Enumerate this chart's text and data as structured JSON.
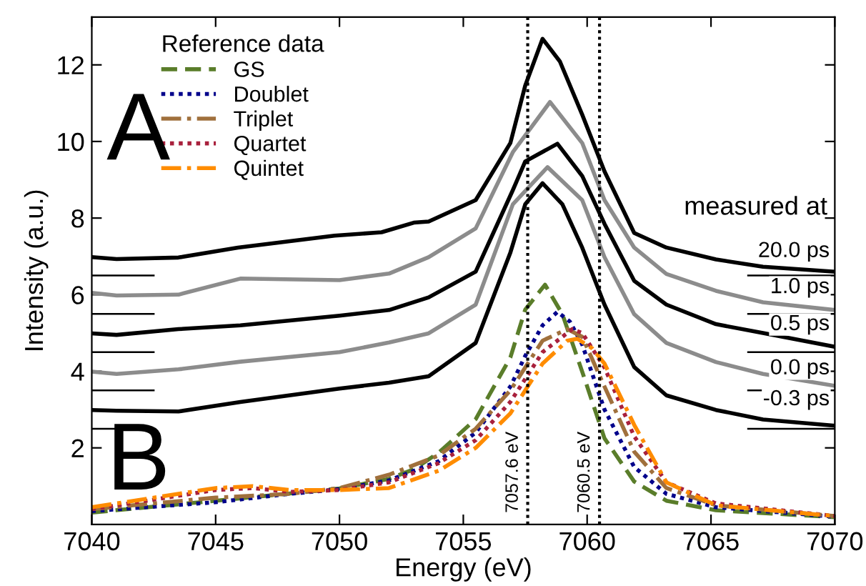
{
  "chart_data": {
    "type": "line",
    "xlabel": "Energy (eV)",
    "ylabel": "Intensity (a.u.)",
    "legend_title": "Reference data",
    "legend": "top left",
    "grid": false,
    "marker": "none",
    "xlim": [
      7040,
      7070
    ],
    "ylim": [
      0,
      13.25
    ],
    "xticks": [
      7040,
      7045,
      7050,
      7055,
      7060,
      7065,
      7070
    ],
    "yticks": [
      2,
      4,
      6,
      8,
      10,
      12
    ],
    "series": [
      {
        "color": "#000000",
        "line_style": "solid",
        "x": [
          7040,
          7041,
          7043.5,
          7045.9,
          7049.8,
          7051.7,
          7053,
          7053.6,
          7055.5,
          7056.9,
          7057.5,
          7058.2,
          7058.9,
          7059.8,
          7060.7,
          7061.9,
          7063.2,
          7065.2,
          7067.1,
          7070
        ],
        "values": [
          6.98,
          6.93,
          6.97,
          7.23,
          7.54,
          7.63,
          7.88,
          7.91,
          8.47,
          9.96,
          11.46,
          12.68,
          12.09,
          10.7,
          9.22,
          7.61,
          7.23,
          6.92,
          6.73,
          6.6
        ]
      },
      {
        "color": "#8c8c8c",
        "line_style": "solid",
        "x": [
          7040,
          7041,
          7043.5,
          7046,
          7050,
          7052,
          7053.6,
          7055.5,
          7057,
          7058.5,
          7059.8,
          7060.7,
          7061.9,
          7063.2,
          7065.2,
          7067.1,
          7070
        ],
        "values": [
          6.05,
          5.98,
          6.0,
          6.42,
          6.38,
          6.55,
          6.98,
          7.73,
          9.72,
          11.03,
          9.96,
          8.47,
          7.23,
          6.54,
          6.1,
          5.8,
          5.6
        ]
      },
      {
        "color": "#000000",
        "line_style": "solid",
        "x": [
          7040,
          7041,
          7043.5,
          7046,
          7050,
          7052,
          7053.6,
          7055.5,
          7057,
          7057.5,
          7058.8,
          7059.8,
          7060.7,
          7061.9,
          7063.2,
          7065.2,
          7067.1,
          7070
        ],
        "values": [
          4.99,
          4.95,
          5.1,
          5.2,
          5.45,
          5.6,
          5.93,
          6.6,
          8.73,
          9.48,
          9.94,
          9.1,
          7.85,
          6.36,
          5.74,
          5.23,
          5.0,
          4.64
        ]
      },
      {
        "color": "#8c8c8c",
        "line_style": "solid",
        "x": [
          7040,
          7041,
          7043.5,
          7046,
          7050,
          7052,
          7053.6,
          7055.5,
          7057,
          7058.4,
          7059.8,
          7060.7,
          7061.9,
          7063.2,
          7065.2,
          7067.1,
          7070
        ],
        "values": [
          3.99,
          3.93,
          4.05,
          4.25,
          4.5,
          4.75,
          4.99,
          5.74,
          8.36,
          9.33,
          8.47,
          6.98,
          5.49,
          4.74,
          4.24,
          3.93,
          3.62
        ]
      },
      {
        "color": "#000000",
        "line_style": "solid",
        "x": [
          7040,
          7041,
          7043.5,
          7046,
          7050,
          7052,
          7053.6,
          7055.5,
          7056.9,
          7057.5,
          7058.2,
          7059,
          7059.8,
          7060.7,
          7061.9,
          7063.2,
          7065.2,
          7067.1,
          7070
        ],
        "values": [
          2.99,
          2.97,
          2.95,
          3.2,
          3.55,
          3.7,
          3.87,
          4.74,
          7.1,
          8.36,
          8.91,
          8.36,
          7.23,
          5.74,
          4.11,
          3.37,
          2.99,
          2.74,
          2.58
        ]
      },
      {
        "name": "GS",
        "color": "#5a7d2a",
        "line_style": "dashed",
        "x": [
          7040,
          7045,
          7048,
          7050,
          7052,
          7053,
          7054,
          7055.5,
          7056.9,
          7057.5,
          7058.3,
          7059,
          7059.8,
          7060.7,
          7061.9,
          7063.2,
          7065.2,
          7070
        ],
        "values": [
          0.31,
          0.62,
          0.81,
          0.94,
          1.19,
          1.44,
          1.87,
          2.75,
          4.36,
          5.61,
          6.26,
          5.49,
          3.99,
          2.25,
          1.12,
          0.62,
          0.37,
          0.19
        ]
      },
      {
        "name": "Doublet",
        "color": "#00008b",
        "line_style": "dotted",
        "x": [
          7040,
          7045,
          7048,
          7050,
          7052,
          7054,
          7055.5,
          7056.9,
          7057.5,
          7058.2,
          7058.8,
          7059.3,
          7059.8,
          7060.7,
          7061.9,
          7063.2,
          7065.2,
          7070
        ],
        "values": [
          0.35,
          0.58,
          0.8,
          0.92,
          1.15,
          1.65,
          2.4,
          3.6,
          4.4,
          5.2,
          5.55,
          5.3,
          4.7,
          3.0,
          1.5,
          0.8,
          0.45,
          0.2
        ]
      },
      {
        "name": "Triplet",
        "color": "#a0703c",
        "line_style": "dashdot",
        "x": [
          7040,
          7045,
          7048,
          7050,
          7052,
          7054,
          7055.5,
          7056.9,
          7057.5,
          7058.2,
          7059.2,
          7059.8,
          7060.7,
          7061.9,
          7063.2,
          7065.2,
          7070
        ],
        "values": [
          0.4,
          0.7,
          0.8,
          0.95,
          1.3,
          1.8,
          2.5,
          3.5,
          4.1,
          4.8,
          5.1,
          4.9,
          3.6,
          1.9,
          0.95,
          0.5,
          0.22
        ]
      },
      {
        "name": "Quartet",
        "color": "#a8203c",
        "line_style": "dotted",
        "x": [
          7040,
          7045,
          7046.5,
          7048,
          7050,
          7052,
          7054,
          7055.5,
          7056.9,
          7057.5,
          7058.2,
          7059.4,
          7059.8,
          7060.7,
          7061.9,
          7063.2,
          7065.2,
          7070
        ],
        "values": [
          0.4,
          0.9,
          0.95,
          0.85,
          0.9,
          1.1,
          1.6,
          2.2,
          3.2,
          3.8,
          4.5,
          5.1,
          5.0,
          4.1,
          2.3,
          1.1,
          0.55,
          0.22
        ]
      },
      {
        "name": "Quintet",
        "color": "#ff8c00",
        "line_style": "dashdot",
        "x": [
          7040,
          7045,
          7046.5,
          7048,
          7050,
          7052,
          7054,
          7055.5,
          7056.9,
          7057.5,
          7058.2,
          7059.2,
          7059.6,
          7060.2,
          7060.7,
          7061.9,
          7063.2,
          7065.2,
          7070
        ],
        "values": [
          0.45,
          0.95,
          1.0,
          0.9,
          0.9,
          0.95,
          1.4,
          2.0,
          2.9,
          3.5,
          4.2,
          4.8,
          4.85,
          4.6,
          4.2,
          2.6,
          1.1,
          0.5,
          0.22
        ]
      },
      {
        "color": "#000000",
        "line_style": "solid",
        "x": [
          7040,
          7042.5,
          7055,
          7066.5,
          7070
        ],
        "values": [
          6.5,
          6.5,
          null,
          6.5,
          6.5
        ]
      },
      {
        "color": "#000000",
        "line_style": "solid",
        "x": [
          7040,
          7042.5,
          7055,
          7066.5,
          7070
        ],
        "values": [
          5.5,
          5.5,
          null,
          5.5,
          5.5
        ]
      },
      {
        "color": "#000000",
        "line_style": "solid",
        "x": [
          7040,
          7042.5,
          7055,
          7066.5,
          7070
        ],
        "values": [
          4.5,
          4.5,
          null,
          4.5,
          4.5
        ]
      },
      {
        "color": "#000000",
        "line_style": "solid",
        "x": [
          7040,
          7042.5,
          7055,
          7066.5,
          7070
        ],
        "values": [
          3.5,
          3.5,
          null,
          3.5,
          3.5
        ]
      },
      {
        "color": "#000000",
        "line_style": "solid",
        "x": [
          7040,
          7042.5,
          7055,
          7066.5,
          7070
        ],
        "values": [
          2.5,
          2.5,
          null,
          2.5,
          2.5
        ]
      }
    ],
    "ref_lines": [
      {
        "axis": "x",
        "value": 7057.6,
        "label": "7057.6 eV",
        "color": "#000000",
        "line_style": "dotted"
      },
      {
        "axis": "x",
        "value": 7060.5,
        "label": "7060.5 eV",
        "color": "#000000",
        "line_style": "dotted"
      }
    ],
    "annotations": [
      "A",
      "B",
      "measured at",
      "20.0 ps",
      "1.0 ps",
      "0.5 ps",
      "0.0 ps",
      "-0.3 ps"
    ]
  }
}
